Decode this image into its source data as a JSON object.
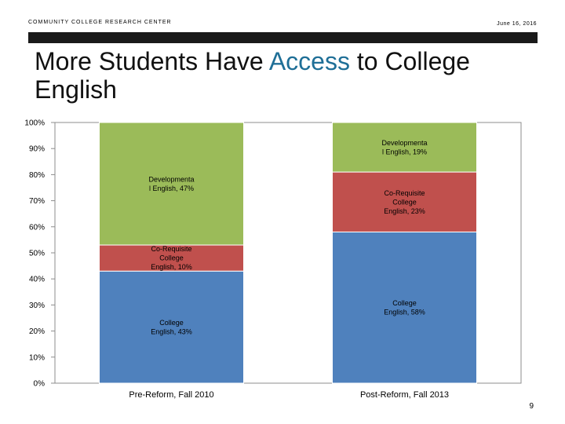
{
  "header": {
    "org": "COMMUNITY COLLEGE RESEARCH CENTER",
    "date": "June 16, 2016"
  },
  "title": {
    "part1": "More Students Have ",
    "accent": "Access",
    "part2": " to College English"
  },
  "page_number": "9",
  "colors": {
    "college_english": "#4f81bd",
    "co_requisite": "#c0504d",
    "developmental": "#9bbb59",
    "title_accent": "#1f6f97"
  },
  "chart_data": {
    "type": "bar",
    "stacked": true,
    "percent_axis": true,
    "categories": [
      "Pre-Reform, Fall 2010",
      "Post-Reform, Fall 2013"
    ],
    "ylim": [
      0,
      100
    ],
    "yticks": [
      "0%",
      "10%",
      "20%",
      "30%",
      "40%",
      "50%",
      "60%",
      "70%",
      "80%",
      "90%",
      "100%"
    ],
    "grid": false,
    "legend": "none",
    "series": [
      {
        "key": "college_english",
        "values": [
          43,
          58
        ],
        "labels": [
          [
            "College",
            "English, 43%"
          ],
          [
            "College",
            "English, 58%"
          ]
        ]
      },
      {
        "key": "co_requisite",
        "values": [
          10,
          23
        ],
        "labels": [
          [
            "Co-Requisite",
            "College",
            "English, 10%"
          ],
          [
            "Co-Requisite",
            "College",
            "English, 23%"
          ]
        ]
      },
      {
        "key": "developmental",
        "values": [
          47,
          19
        ],
        "labels": [
          [
            "Developmenta",
            "l English, 47%"
          ],
          [
            "Developmenta",
            "l English, 19%"
          ]
        ]
      }
    ]
  }
}
